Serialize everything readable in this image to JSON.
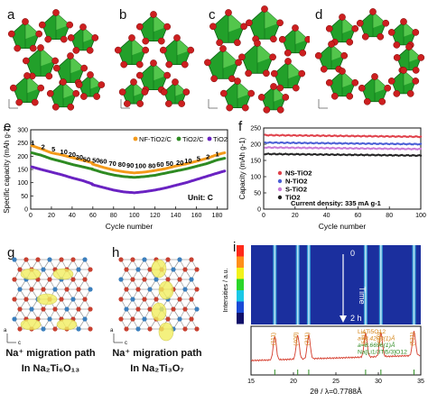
{
  "panel_labels": {
    "a": "a",
    "b": "b",
    "c": "c",
    "d": "d",
    "e": "e",
    "f": "f",
    "g": "g",
    "h": "h",
    "i": "i"
  },
  "colors": {
    "octahedron": "#22a02a",
    "oxygen": "#cc1f1f",
    "nf": "#f39a1b",
    "tio2c": "#2e8b22",
    "tio2": "#6a23c2",
    "ns": "#e0404a",
    "n": "#4a5fd6",
    "s": "#c97ad6",
    "plain": "#222222"
  },
  "chart_data": [
    {
      "type": "line",
      "panel": "e",
      "xlabel": "Cycle number",
      "ylabel": "Specific capacity (mAh g-1)",
      "xlim": [
        0,
        190
      ],
      "ylim": [
        0,
        300
      ],
      "xticks": [
        "0",
        "20",
        "40",
        "60",
        "80",
        "100",
        "120",
        "140",
        "160",
        "180"
      ],
      "yticks": [
        "0",
        "50",
        "100",
        "150",
        "200",
        "250",
        "300"
      ],
      "annotation": "Unit: C",
      "rate_labels": [
        {
          "text": "1",
          "x": 2,
          "y": 262
        },
        {
          "text": "2",
          "x": 12,
          "y": 248
        },
        {
          "text": "5",
          "x": 22,
          "y": 238
        },
        {
          "text": "10",
          "x": 32,
          "y": 228
        },
        {
          "text": "20",
          "x": 40,
          "y": 218
        },
        {
          "text": "30",
          "x": 47,
          "y": 208
        },
        {
          "text": "50",
          "x": 54,
          "y": 200
        },
        {
          "text": "50",
          "x": 63,
          "y": 196
        },
        {
          "text": "60",
          "x": 70,
          "y": 192
        },
        {
          "text": "70",
          "x": 79,
          "y": 184
        },
        {
          "text": "80",
          "x": 88,
          "y": 180
        },
        {
          "text": "90",
          "x": 96,
          "y": 178
        },
        {
          "text": "100",
          "x": 106,
          "y": 176
        },
        {
          "text": "80",
          "x": 117,
          "y": 176
        },
        {
          "text": "60",
          "x": 125,
          "y": 180
        },
        {
          "text": "50",
          "x": 134,
          "y": 184
        },
        {
          "text": "20",
          "x": 144,
          "y": 188
        },
        {
          "text": "10",
          "x": 152,
          "y": 194
        },
        {
          "text": "5",
          "x": 162,
          "y": 202
        },
        {
          "text": "2",
          "x": 171,
          "y": 210
        },
        {
          "text": "1",
          "x": 180,
          "y": 220
        }
      ],
      "series": [
        {
          "name": "NF-TiO2/C",
          "x": [
            1,
            10,
            20,
            30,
            40,
            50,
            59,
            60,
            70,
            80,
            90,
            100,
            110,
            120,
            130,
            140,
            150,
            160,
            170,
            180,
            188
          ],
          "values": [
            240,
            228,
            213,
            205,
            195,
            185,
            176,
            170,
            158,
            148,
            141,
            137,
            140,
            146,
            153,
            163,
            171,
            181,
            192,
            206,
            214
          ]
        },
        {
          "name": "TiO2/C",
          "x": [
            1,
            10,
            20,
            30,
            40,
            50,
            59,
            60,
            70,
            80,
            90,
            100,
            110,
            120,
            130,
            140,
            150,
            160,
            170,
            180,
            188
          ],
          "values": [
            213,
            204,
            190,
            180,
            169,
            160,
            152,
            150,
            138,
            129,
            123,
            120,
            123,
            128,
            136,
            144,
            152,
            162,
            172,
            186,
            193
          ]
        },
        {
          "name": "TiO2",
          "x": [
            1,
            10,
            20,
            30,
            40,
            50,
            59,
            60,
            70,
            80,
            90,
            100,
            110,
            120,
            130,
            140,
            150,
            160,
            170,
            180,
            188
          ],
          "values": [
            160,
            150,
            140,
            130,
            118,
            108,
            96,
            92,
            82,
            72,
            65,
            62,
            66,
            72,
            80,
            90,
            100,
            112,
            124,
            136,
            145
          ]
        }
      ]
    },
    {
      "type": "scatter",
      "panel": "f",
      "xlabel": "Cycle number",
      "ylabel": "Capacity (mAh g-1)",
      "xlim": [
        0,
        100
      ],
      "ylim": [
        0,
        250
      ],
      "xticks": [
        "0",
        "20",
        "40",
        "60",
        "80",
        "100"
      ],
      "yticks": [
        "0",
        "50",
        "100",
        "150",
        "200",
        "250"
      ],
      "annotation": "Current density: 335 mA g-1",
      "series": [
        {
          "name": "NS-TiO2",
          "level": 228
        },
        {
          "name": "N-TiO2",
          "level": 205
        },
        {
          "name": "S-TiO2",
          "level": 190
        },
        {
          "name": "TiO2",
          "level": 170
        }
      ]
    },
    {
      "type": "heatmap",
      "panel": "i",
      "ylabel": "Intensities / a.u.",
      "time_label": "Time",
      "time_start": "0",
      "time_end": "2 h",
      "colorbar_top": "a.u.",
      "xlabel": "2θ / λ=0.7788Å",
      "xlim": [
        15,
        35
      ],
      "xticks": [
        "15",
        "20",
        "25",
        "30",
        "35"
      ],
      "legend": [
        "Li4Ti5O12",
        "a=8.4203(1)Å",
        "a=8.6696(1)Å",
        "Na[Li1/3Ti5/3]O12"
      ],
      "peaks": [
        {
          "label": "(111)",
          "x": 17.8
        },
        {
          "label": "(400)",
          "x": 20.5
        },
        {
          "label": "(311)",
          "x": 21.8
        },
        {
          "label": "(511)",
          "x": 28.5
        },
        {
          "label": "(440)",
          "x": 30.3
        },
        {
          "label": "(531)",
          "x": 34.2
        }
      ]
    }
  ],
  "panel_g": {
    "caption_line1": "Na⁺ migration path",
    "caption_line2": "In Na₂Ti₆O₁₃",
    "axis_a": "a",
    "axis_c": "c"
  },
  "panel_h": {
    "caption_line1": "Na⁺ migration path",
    "caption_line2": "In Na₂Ti₃O₇",
    "axis_a": "a",
    "axis_c": "c"
  }
}
